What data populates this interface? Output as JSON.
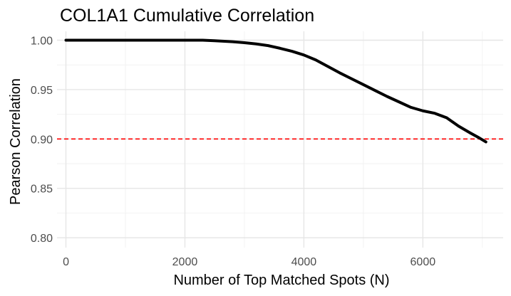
{
  "chart_data": {
    "type": "line",
    "title": "COL1A1 Cumulative Correlation",
    "xlabel": "Number of Top Matched Spots (N)",
    "ylabel": "Pearson Correlation",
    "xlim": [
      -150,
      7350
    ],
    "ylim": [
      0.79,
      1.009
    ],
    "x_ticks": [
      0,
      2000,
      4000,
      6000
    ],
    "y_ticks": [
      0.8,
      0.85,
      0.9,
      0.95,
      1.0
    ],
    "y_tick_labels": [
      "0.80",
      "0.85",
      "0.90",
      "0.95",
      "1.00"
    ],
    "grid": true,
    "legend": "none",
    "reference_line": {
      "y": 0.9,
      "style": "dashed",
      "color": "#ff0000"
    },
    "series": [
      {
        "color": "#000000",
        "x": [
          0,
          500,
          1000,
          1500,
          2000,
          2300,
          2500,
          2800,
          3000,
          3200,
          3400,
          3600,
          3800,
          4000,
          4200,
          4400,
          4600,
          4800,
          5000,
          5200,
          5400,
          5600,
          5800,
          6000,
          6200,
          6400,
          6600,
          6800,
          6950,
          7060
        ],
        "y": [
          1.0,
          1.0,
          1.0,
          1.0,
          1.0,
          1.0,
          0.9995,
          0.9985,
          0.9975,
          0.9962,
          0.9945,
          0.9918,
          0.9888,
          0.985,
          0.98,
          0.9735,
          0.967,
          0.961,
          0.955,
          0.949,
          0.943,
          0.9375,
          0.932,
          0.9285,
          0.926,
          0.9215,
          0.913,
          0.906,
          0.901,
          0.897
        ]
      }
    ]
  }
}
